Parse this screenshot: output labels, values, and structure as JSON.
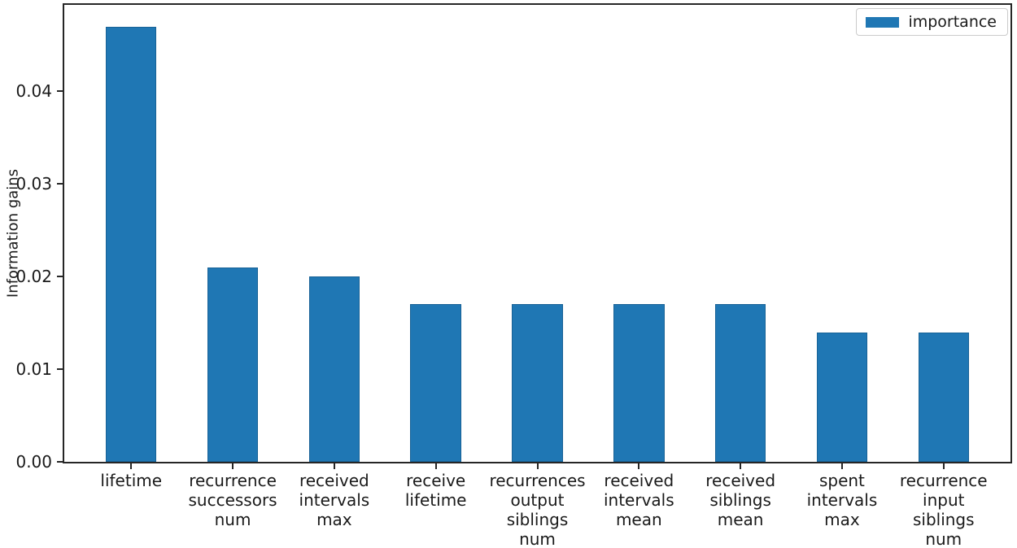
{
  "chart_data": {
    "type": "bar",
    "title": "",
    "xlabel": "",
    "ylabel": "Information gains",
    "categories": [
      "lifetime",
      "recurrence successors num",
      "received intervals max",
      "receive lifetime",
      "recurrences output siblings num",
      "received intervals mean",
      "received siblings mean",
      "spent intervals max",
      "recurrence input siblings num"
    ],
    "series": [
      {
        "name": "importance",
        "values": [
          0.047,
          0.021,
          0.02,
          0.017,
          0.017,
          0.017,
          0.017,
          0.014,
          0.014
        ]
      }
    ],
    "legend": {
      "label": "importance",
      "position": "upper-right",
      "swatch_color": "#1f77b4"
    },
    "bar_color": "#1f77b4",
    "axis_color": "#262626",
    "text_color": "#1a1a1a",
    "ylim": [
      0,
      0.04935
    ],
    "ytick_labels": [
      "0.00",
      "0.01",
      "0.02",
      "0.03",
      "0.04"
    ],
    "xlim": [
      -0.675,
      8.675
    ],
    "bar_width_units": 0.5,
    "grid": false,
    "xtick_wrap": "one-word-per-line"
  }
}
